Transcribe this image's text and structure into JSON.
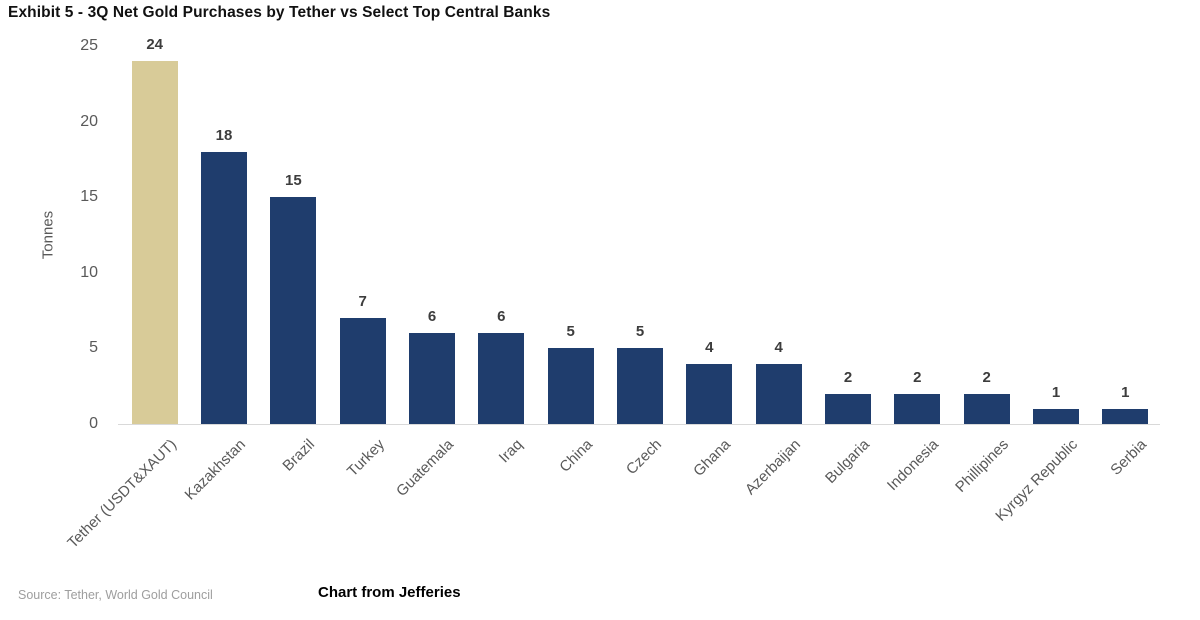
{
  "title": "Exhibit 5 - 3Q Net Gold Purchases by Tether vs Select Top Central Banks",
  "source_note": "Source: Tether, World Gold Council",
  "caption": "Chart from Jefferies",
  "chart_data": {
    "type": "bar",
    "categories": [
      "Tether (USDT&XAUT)",
      "Kazakhstan",
      "Brazil",
      "Turkey",
      "Guatemala",
      "Iraq",
      "China",
      "Czech",
      "Ghana",
      "Azerbaijan",
      "Bulgaria",
      "Indonesia",
      "Phillipines",
      "Kyrgyz Republic",
      "Serbia"
    ],
    "values": [
      24,
      18,
      15,
      7,
      6,
      6,
      5,
      5,
      4,
      4,
      2,
      2,
      2,
      1,
      1
    ],
    "title": "Exhibit 5 - 3Q Net Gold Purchases by Tether vs Select Top Central Banks",
    "xlabel": "",
    "ylabel": "Tonnes",
    "ylim": [
      0,
      25
    ],
    "yticks": [
      0,
      5,
      10,
      15,
      20,
      25
    ],
    "grid": false,
    "legend": false,
    "colors": {
      "highlight_bar": "#d8cb98",
      "default_bar": "#1f3d6d",
      "axis_line": "#d9d9d9",
      "tick_text": "#595959",
      "value_text": "#3d3d3d"
    },
    "highlight_index": 0
  }
}
